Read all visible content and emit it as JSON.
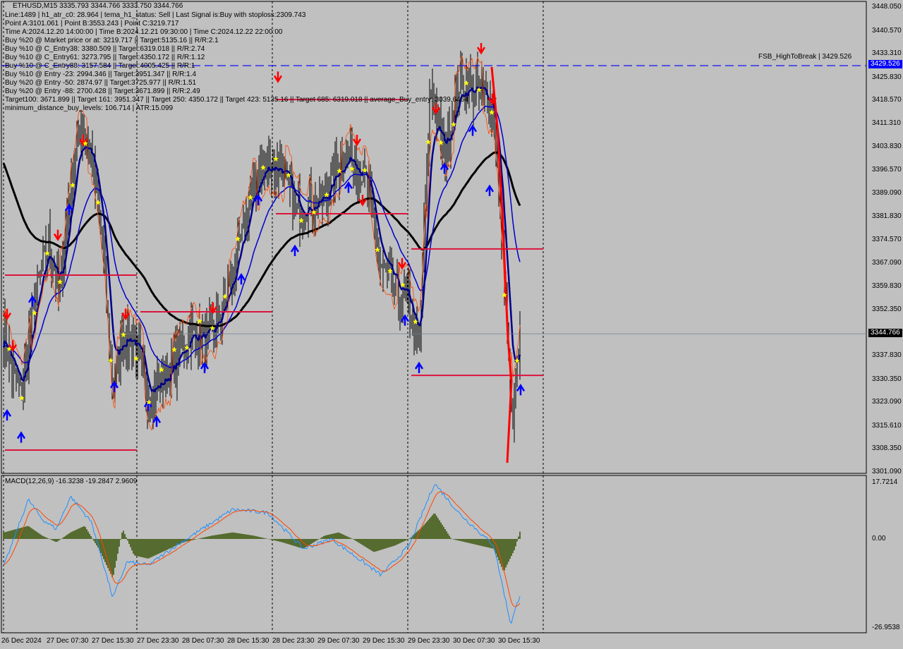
{
  "header": {
    "title": "ETHUSD,M15  3335.793 3344.766 3333.750 3344.766"
  },
  "info_lines": [
    "Line:1489 | h1_atr_c0: 28.964 | tema_h1_status: Sell | Last Signal is:Buy with stoploss:2309.743",
    "Point A:3101.061 | Point B:3553.243 | Point C:3219.717",
    "Time A:2024.12.20 14:00:00 | Time B:2024.12.21 09:30:00 | Time C:2024.12.22 22:00:00",
    "Buy %20 @ Market price or at: 3219.717 || Target:5135.16 || R/R:2.1",
    "Buy %10 @ C_Entry38: 3380.509 || Target:6319.018 || R/R:2.74",
    "Buy %10 @ C_Entry61: 3273.795 || Target:4350.172 || R/R:1.12",
    "Buy %10 @ C_Entry88: 3157.584 || Target:4005.425 || R/R:1",
    "Buy %10 @ Entry -23: 2994.346 || Target:3951.347 || R/R:1.4",
    "Buy %20 @ Entry -50: 2874.97 || Target:3725.977 || R/R:1.51",
    "Buy %20 @ Entry -88: 2700.428 || Target:3671.899 || R/R:2.49",
    "Target100: 3671.899 || Target 161: 3951.347 || Target 250: 4350.172 || Target 423: 5135.16 || Target 685: 6319.018 || average_Buy_entry: 3039.6464",
    "minimum_distance_buy_levels: 106.714 | ATR:15.099"
  ],
  "colors": {
    "background": "#c0c0c0",
    "candles": "#000000",
    "ma_slow": "#000000",
    "ma_fast": "#00008b",
    "ma_mid": "#0000cd",
    "levels": "#dc143c",
    "high_to_break": "#0000ff",
    "macd_hist": "#556b2f",
    "macd_line": "#1e90ff",
    "signal_line": "#ff4500",
    "buy_arrow": "#0000ff",
    "sell_arrow": "#ff0000",
    "star": "#ffff00"
  },
  "chart_data": [
    {
      "type": "candlestick",
      "symbol": "ETHUSD",
      "timeframe": "M15",
      "ylim": [
        3301.09,
        3448.05
      ],
      "y_ticks": [
        "3448.050",
        "3440.570",
        "3433.310",
        "3425.830",
        "3418.570",
        "3411.310",
        "3403.830",
        "3396.570",
        "3389.090",
        "3381.830",
        "3374.570",
        "3367.090",
        "3359.830",
        "3352.350",
        "3337.830",
        "3330.350",
        "3323.090",
        "3315.610",
        "3308.350",
        "3301.090"
      ],
      "x_ticks": [
        "26 Dec 2024",
        "27 Dec 07:30",
        "27 Dec 15:30",
        "27 Dec 23:30",
        "28 Dec 07:30",
        "28 Dec 15:30",
        "28 Dec 23:30",
        "29 Dec 07:30",
        "29 Dec 15:30",
        "29 Dec 23:30",
        "30 Dec 07:30",
        "30 Dec 15:30"
      ],
      "current_price": "3344.766",
      "high_to_break": {
        "label": "FSB_HighToBreak | 3429.526",
        "price": 3429.526,
        "tag": "3429.526"
      },
      "approx_close": [
        [
          "2024-12-27 00:00",
          3345.5
        ],
        [
          "2024-12-27 01:15",
          3334.3
        ],
        [
          "2024-12-27 03:00",
          3325.4
        ],
        [
          "2024-12-27 05:30",
          3356.6
        ],
        [
          "2024-12-27 08:00",
          3374.5
        ],
        [
          "2024-12-27 09:45",
          3356.6
        ],
        [
          "2024-12-27 11:45",
          3392.3
        ],
        [
          "2024-12-27 13:30",
          3410.2
        ],
        [
          "2024-12-27 15:30",
          3401.2
        ],
        [
          "2024-12-27 17:30",
          3372.2
        ],
        [
          "2024-12-27 19:15",
          3325.4
        ],
        [
          "2024-12-27 21:00",
          3345.5
        ],
        [
          "2024-12-27 23:00",
          3343.2
        ],
        [
          "2024-12-28 01:30",
          3325.4
        ],
        [
          "2024-12-28 04:00",
          3329.8
        ],
        [
          "2024-12-28 06:30",
          3336.5
        ],
        [
          "2024-12-28 09:00",
          3345.5
        ],
        [
          "2024-12-28 12:45",
          3343.2
        ],
        [
          "2024-12-28 15:15",
          3356.6
        ],
        [
          "2024-12-28 17:45",
          3372.2
        ],
        [
          "2024-12-28 20:15",
          3392.3
        ],
        [
          "2024-12-28 22:45",
          3399.0
        ],
        [
          "2024-12-29 01:15",
          3396.8
        ],
        [
          "2024-12-29 03:45",
          3383.4
        ],
        [
          "2024-12-29 06:15",
          3385.6
        ],
        [
          "2024-12-29 08:45",
          3387.8
        ],
        [
          "2024-12-29 11:15",
          3399.0
        ],
        [
          "2024-12-29 13:45",
          3401.2
        ],
        [
          "2024-12-29 16:15",
          3392.3
        ],
        [
          "2024-12-29 18:45",
          3365.5
        ],
        [
          "2024-12-29 21:15",
          3358.8
        ],
        [
          "2024-12-29 23:45",
          3354.4
        ],
        [
          "2024-12-30 01:30",
          3338.8
        ],
        [
          "2024-12-30 03:30",
          3423.5
        ],
        [
          "2024-12-30 06:00",
          3401.2
        ],
        [
          "2024-12-30 08:30",
          3423.5
        ],
        [
          "2024-12-30 12:15",
          3421.3
        ],
        [
          "2024-12-30 14:45",
          3416.8
        ],
        [
          "2024-12-30 16:30",
          3365.5
        ],
        [
          "2024-12-30 18:00",
          3316.5
        ],
        [
          "2024-12-30 19:30",
          3344.766
        ]
      ],
      "levels": [
        {
          "from": "2024-12-26 23:30",
          "to": "2024-12-27 23:30",
          "price": 3363.3
        },
        {
          "from": "2024-12-26 23:30",
          "to": "2024-12-27 23:30",
          "price": 3308.0
        },
        {
          "from": "2024-12-27 23:30",
          "to": "2024-12-28 23:30",
          "price": 3351.7
        },
        {
          "from": "2024-12-28 23:30",
          "to": "2024-12-29 23:30",
          "price": 3418.8
        },
        {
          "from": "2024-12-28 23:30",
          "to": "2024-12-29 23:30",
          "price": 3382.7
        },
        {
          "from": "2024-12-29 23:30",
          "to": "2024-12-30 23:30",
          "price": 3371.6
        },
        {
          "from": "2024-12-29 23:30",
          "to": "2024-12-30 23:30",
          "price": 3331.6
        }
      ],
      "period_separators": [
        "2024-12-27 23:30",
        "2024-12-28 23:30",
        "2024-12-29 23:30",
        "2024-12-30 23:30"
      ],
      "sell_signals": [
        [
          "2024-12-27 00:30",
          3350
        ],
        [
          "2024-12-27 01:30",
          3340
        ],
        [
          "2024-12-27 09:30",
          3375
        ],
        [
          "2024-12-27 14:00",
          3405
        ],
        [
          "2024-12-27 21:30",
          3350
        ],
        [
          "2024-12-28 13:00",
          3352
        ],
        [
          "2024-12-29 00:30",
          3425
        ],
        [
          "2024-12-29 14:30",
          3405
        ],
        [
          "2024-12-29 15:30",
          3386
        ],
        [
          "2024-12-29 22:30",
          3366
        ],
        [
          "2024-12-30 04:30",
          3415
        ],
        [
          "2024-12-30 12:30",
          3434
        ],
        [
          "2024-12-30 14:30",
          3418
        ]
      ],
      "buy_signals": [
        [
          "2024-12-27 00:30",
          3320
        ],
        [
          "2024-12-27 03:00",
          3313
        ],
        [
          "2024-12-27 05:00",
          3356
        ],
        [
          "2024-12-27 11:30",
          3385
        ],
        [
          "2024-12-27 19:30",
          3329
        ],
        [
          "2024-12-28 01:30",
          3323
        ],
        [
          "2024-12-28 03:00",
          3318
        ],
        [
          "2024-12-28 11:30",
          3335
        ],
        [
          "2024-12-28 18:00",
          3363
        ],
        [
          "2024-12-28 21:00",
          3388
        ],
        [
          "2024-12-29 03:30",
          3372
        ],
        [
          "2024-12-29 13:00",
          3392
        ],
        [
          "2024-12-29 23:00",
          3350
        ],
        [
          "2024-12-30 01:30",
          3335
        ],
        [
          "2024-12-30 06:00",
          3398
        ],
        [
          "2024-12-30 11:00",
          3410
        ],
        [
          "2024-12-30 14:00",
          3391
        ],
        [
          "2024-12-30 19:30",
          3328
        ]
      ]
    },
    {
      "type": "macd",
      "label": "MACD(12,26,9) -16.3238 -19.2847 2.9609",
      "ylim": [
        -26.9538,
        17.7214
      ],
      "y_ticks": [
        "17.7214",
        "0.00",
        "-26.9538"
      ],
      "macd": [
        [
          "2024-12-27 00:00",
          -8
        ],
        [
          "2024-12-27 04:15",
          12
        ],
        [
          "2024-12-27 06:45",
          6
        ],
        [
          "2024-12-27 09:15",
          3
        ],
        [
          "2024-12-27 11:45",
          13
        ],
        [
          "2024-12-27 15:30",
          5
        ],
        [
          "2024-12-27 19:15",
          -18
        ],
        [
          "2024-12-27 21:45",
          -7
        ],
        [
          "2024-12-28 01:30",
          -8
        ],
        [
          "2024-12-28 06:30",
          -2
        ],
        [
          "2024-12-28 16:30",
          9
        ],
        [
          "2024-12-28 22:45",
          8
        ],
        [
          "2024-12-29 05:00",
          -3
        ],
        [
          "2024-12-29 10:00",
          0
        ],
        [
          "2024-12-29 18:45",
          -11
        ],
        [
          "2024-12-29 23:45",
          -2
        ],
        [
          "2024-12-30 04:15",
          17
        ],
        [
          "2024-12-30 08:30",
          8
        ],
        [
          "2024-12-30 14:45",
          -2
        ],
        [
          "2024-12-30 17:45",
          -26
        ],
        [
          "2024-12-30 19:30",
          -16.3238
        ]
      ],
      "histogram": [
        [
          "2024-12-27 00:00",
          2
        ],
        [
          "2024-12-27 04:15",
          4
        ],
        [
          "2024-12-27 06:45",
          1
        ],
        [
          "2024-12-27 09:15",
          -1
        ],
        [
          "2024-12-27 11:45",
          2
        ],
        [
          "2024-12-27 14:15",
          4
        ],
        [
          "2024-12-27 16:45",
          -3
        ],
        [
          "2024-12-27 19:15",
          -12
        ],
        [
          "2024-12-27 21:00",
          3
        ],
        [
          "2024-12-27 23:00",
          -5
        ],
        [
          "2024-12-28 01:30",
          -6
        ],
        [
          "2024-12-28 04:00",
          -4
        ],
        [
          "2024-12-28 07:45",
          -1
        ],
        [
          "2024-12-28 12:45",
          1
        ],
        [
          "2024-12-28 16:30",
          2
        ],
        [
          "2024-12-28 20:15",
          1
        ],
        [
          "2024-12-29 01:15",
          -1
        ],
        [
          "2024-12-29 05:00",
          -3
        ],
        [
          "2024-12-29 08:45",
          1
        ],
        [
          "2024-12-29 11:15",
          2
        ],
        [
          "2024-12-29 13:45",
          0
        ],
        [
          "2024-12-29 17:30",
          -4
        ],
        [
          "2024-12-29 21:15",
          -2
        ],
        [
          "2024-12-29 23:45",
          0
        ],
        [
          "2024-12-30 02:15",
          4
        ],
        [
          "2024-12-30 04:15",
          8
        ],
        [
          "2024-12-30 07:15",
          0
        ],
        [
          "2024-12-30 09:45",
          -1
        ],
        [
          "2024-12-30 14:45",
          -3
        ],
        [
          "2024-12-30 16:30",
          -10
        ],
        [
          "2024-12-30 18:30",
          -3
        ],
        [
          "2024-12-30 19:30",
          2.9609
        ]
      ]
    }
  ]
}
